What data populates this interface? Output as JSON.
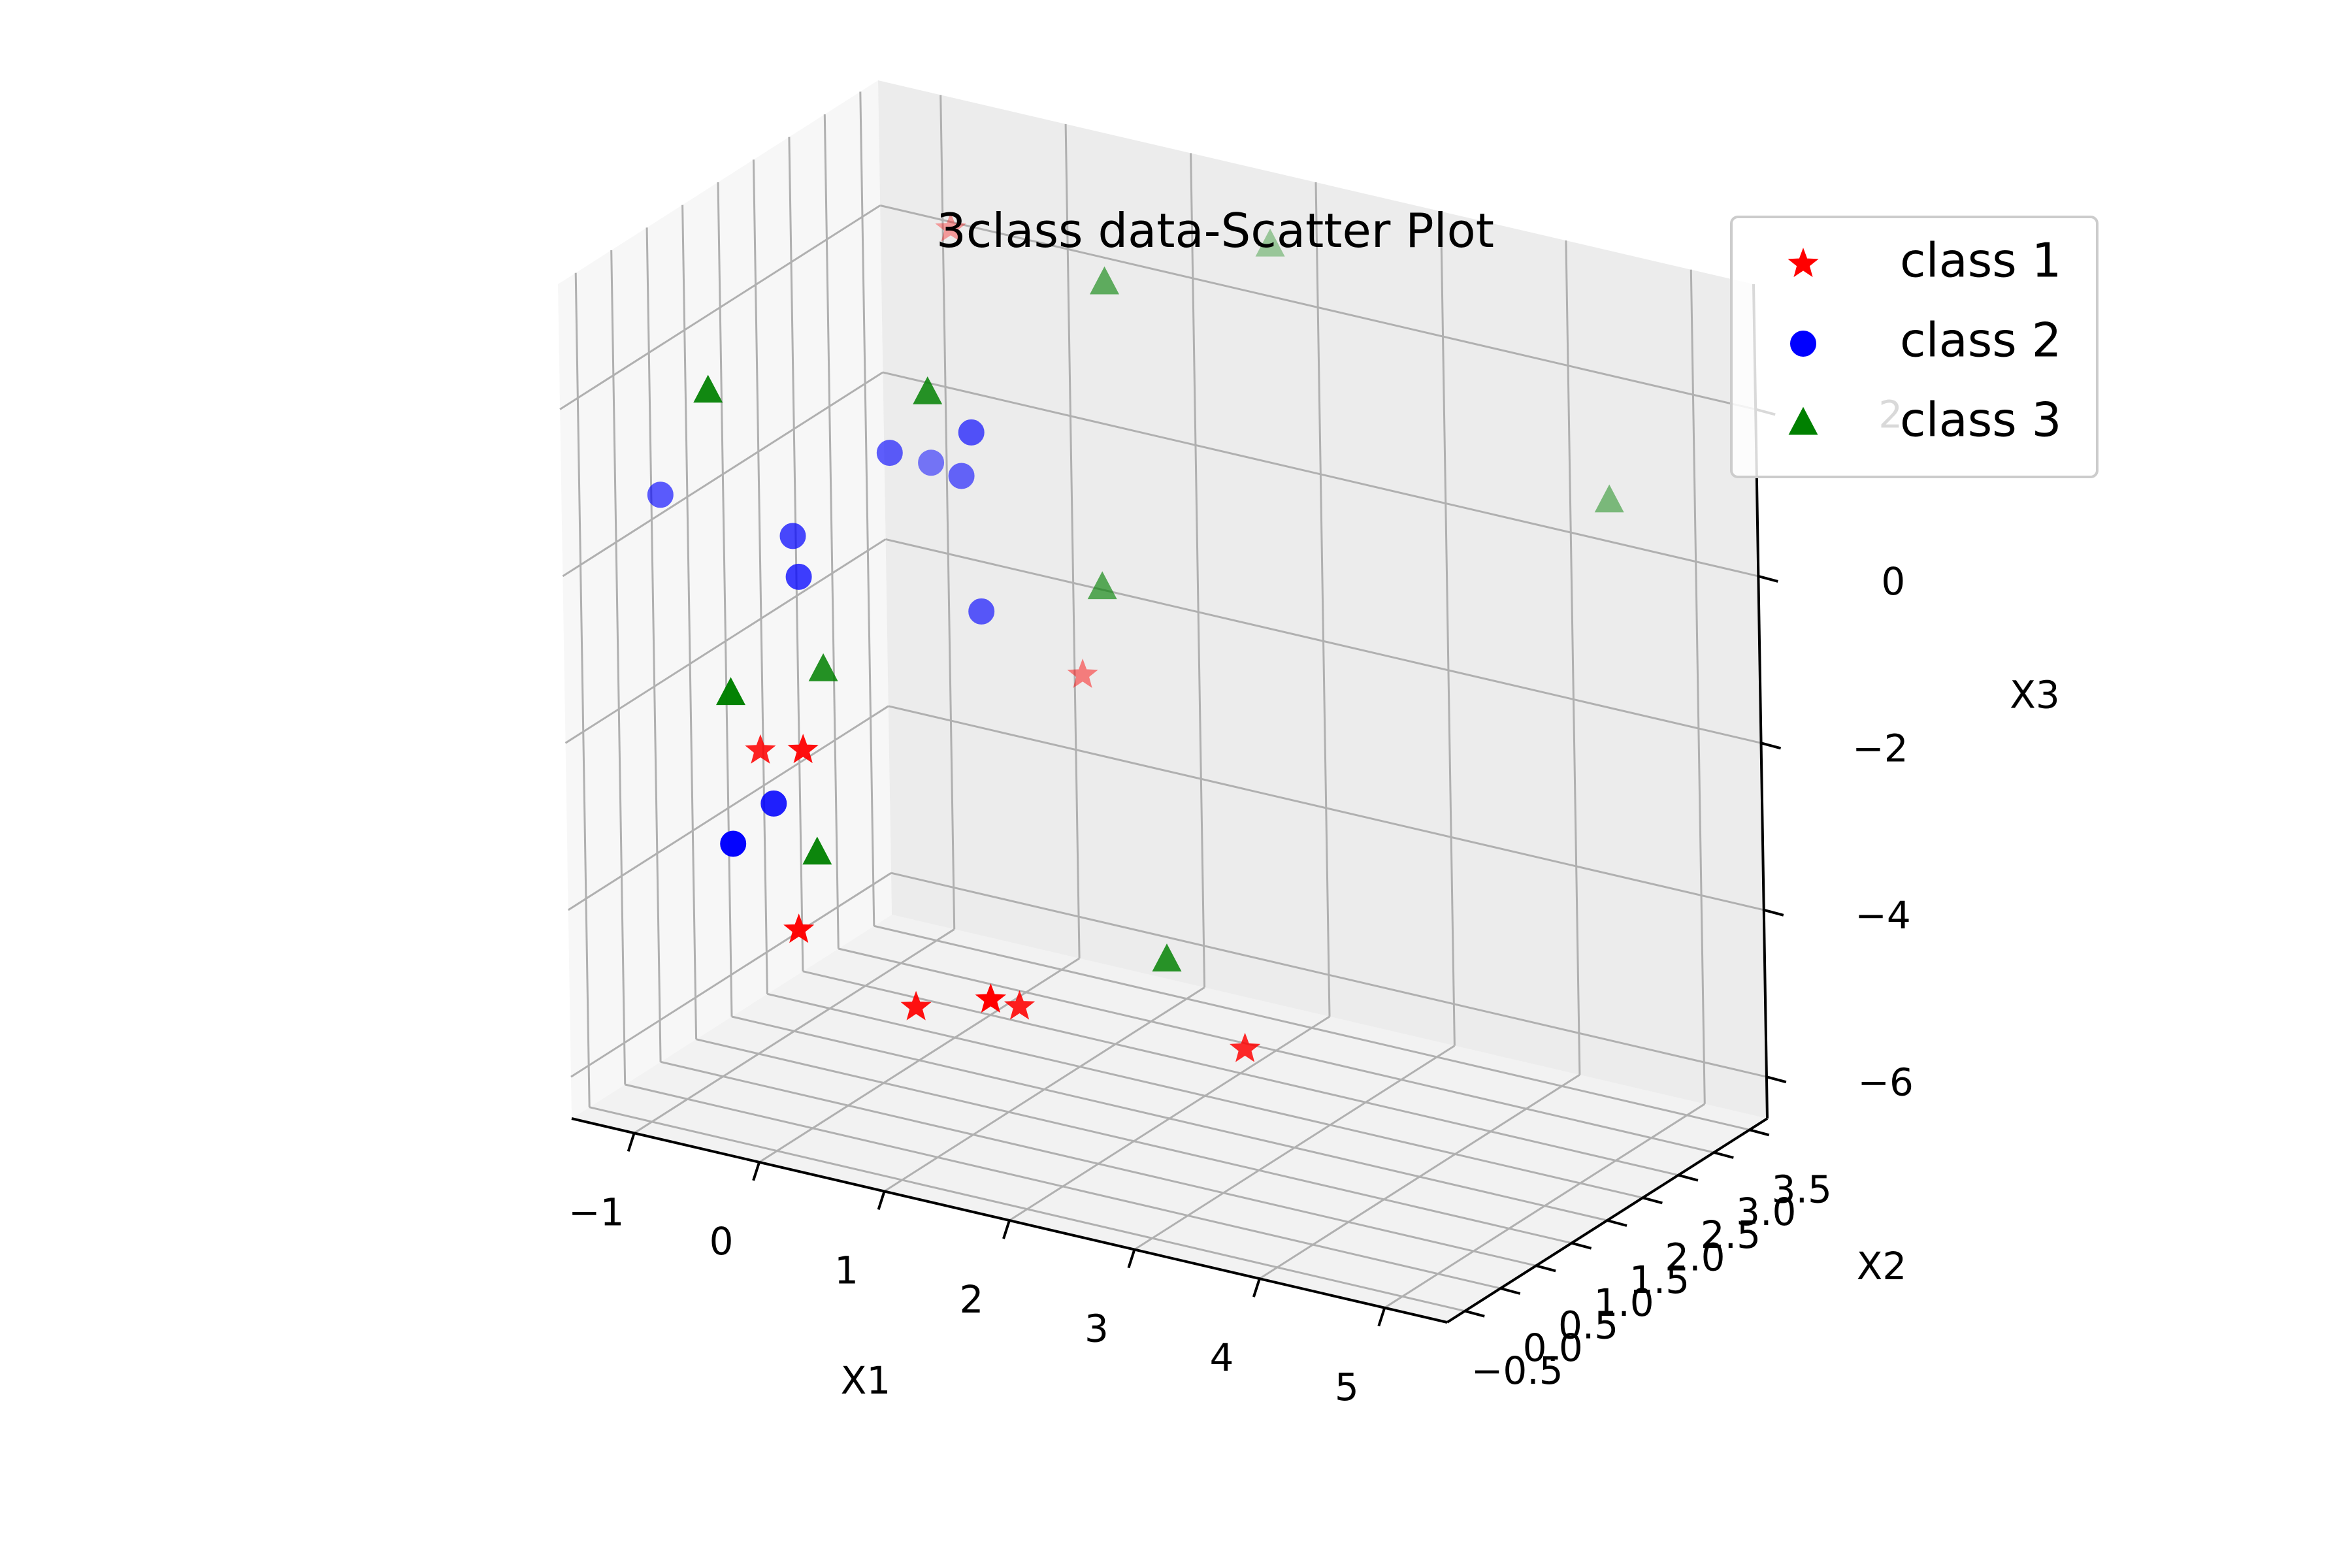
{
  "chart_data": {
    "type": "scatter",
    "projection": "3d",
    "title": "3class data-Scatter Plot",
    "xlabel": "X1",
    "ylabel": "X2",
    "zlabel": "X3",
    "x_ticks": [
      "−1",
      "0",
      "1",
      "2",
      "3",
      "4",
      "5"
    ],
    "y_ticks": [
      "−0.5",
      "0.0",
      "0.5",
      "1.0",
      "1.5",
      "2.0",
      "2.5",
      "3.0",
      "3.5"
    ],
    "z_ticks": [
      "−6",
      "−4",
      "−2",
      "0",
      "2"
    ],
    "xlim": [
      -1.5,
      5.5
    ],
    "ylim": [
      -0.75,
      3.75
    ],
    "zlim": [
      -6.5,
      3.5
    ],
    "grid": true,
    "legend_position": "top-right",
    "series": [
      {
        "name": "class 1",
        "marker": "star",
        "color": "#ff0000",
        "points": [
          {
            "x": -0.1,
            "y": 2.3,
            "z": 3.0
          },
          {
            "x": 0.9,
            "y": 2.3,
            "z": -2.0
          },
          {
            "x": -0.2,
            "y": 0.3,
            "z": -2.2
          },
          {
            "x": -0.6,
            "y": 0.4,
            "z": -2.4
          },
          {
            "x": -0.2,
            "y": 0.2,
            "z": -4.3
          },
          {
            "x": 0.5,
            "y": 0.6,
            "z": -5.2
          },
          {
            "x": 1.1,
            "y": 0.6,
            "z": -4.9
          },
          {
            "x": 1.1,
            "y": 1.0,
            "z": -5.2
          },
          {
            "x": 2.5,
            "y": 1.7,
            "z": -5.6
          }
        ]
      },
      {
        "name": "class 2",
        "marker": "circle",
        "color": "#0000ff",
        "points": [
          {
            "x": -1.6,
            "y": 0.8,
            "z": 0.1
          },
          {
            "x": -0.6,
            "y": 0.9,
            "z": -0.1
          },
          {
            "x": -0.5,
            "y": 0.8,
            "z": -0.5
          },
          {
            "x": -0.1,
            "y": 1.4,
            "z": 0.8
          },
          {
            "x": 0.0,
            "y": 1.8,
            "z": 0.5
          },
          {
            "x": 0.3,
            "y": 1.7,
            "z": 0.5
          },
          {
            "x": 0.5,
            "y": 1.5,
            "z": 1.2
          },
          {
            "x": 0.5,
            "y": 1.6,
            "z": -1.0
          },
          {
            "x": -0.5,
            "y": 0.4,
            "z": -3.0
          },
          {
            "x": -0.6,
            "y": 0.0,
            "z": -3.3
          }
        ]
      },
      {
        "name": "class 3",
        "marker": "triangle",
        "color": "#008000",
        "points": [
          {
            "x": -0.8,
            "y": 0.1,
            "z": 2.0
          },
          {
            "x": 0.5,
            "y": 0.9,
            "z": 2.0
          },
          {
            "x": 1.3,
            "y": 2.0,
            "z": 3.0
          },
          {
            "x": 2.0,
            "y": 3.1,
            "z": 3.1
          },
          {
            "x": 1.3,
            "y": 1.9,
            "z": -0.6
          },
          {
            "x": 4.4,
            "y": 3.6,
            "z": 0.6
          },
          {
            "x": -0.6,
            "y": 0.0,
            "z": -1.5
          },
          {
            "x": -0.2,
            "y": 0.6,
            "z": -1.4
          },
          {
            "x": -0.1,
            "y": 0.3,
            "z": -3.4
          },
          {
            "x": 2.0,
            "y": 1.5,
            "z": -4.6
          }
        ]
      }
    ]
  }
}
